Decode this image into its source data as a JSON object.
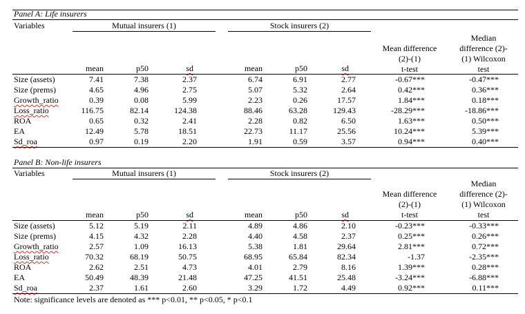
{
  "panel_a": {
    "title": "Panel A: Life insurers",
    "variables_label": "Variables",
    "group_mutual": "Mutual insurers (1)",
    "group_stock": "Stock insurers (2)",
    "col_mean": "mean",
    "col_p50": "p50",
    "col_sd": "sd",
    "mean_diff_header": [
      "Mean difference",
      "(2)-(1)",
      "t-test"
    ],
    "median_diff_header": [
      "Median",
      "difference (2)-",
      "(1) Wilcoxon",
      "test"
    ],
    "rows": [
      {
        "label": "Size (assets)",
        "m_mean": "7.41",
        "m_p50": "7.38",
        "m_sd": "2.37",
        "s_mean": "6.74",
        "s_p50": "6.91",
        "s_sd": "2.77",
        "mean_diff": "-0.67***",
        "median_diff": "-0.47***"
      },
      {
        "label": "Size (prems)",
        "m_mean": "4.65",
        "m_p50": "4.96",
        "m_sd": "2.75",
        "s_mean": "5.07",
        "s_p50": "5.32",
        "s_sd": "2.64",
        "mean_diff": "0.42***",
        "median_diff": "0.36***"
      },
      {
        "label": "Growth_ratio",
        "m_mean": "0.39",
        "m_p50": "0.08",
        "m_sd": "5.99",
        "s_mean": "2.23",
        "s_p50": "0.26",
        "s_sd": "17.57",
        "mean_diff": "1.84***",
        "median_diff": "0.18***"
      },
      {
        "label": "Loss_ratio",
        "m_mean": "116.75",
        "m_p50": "82.14",
        "m_sd": "124.38",
        "s_mean": "88.46",
        "s_p50": "63.28",
        "s_sd": "129.43",
        "mean_diff": "-28.29***",
        "median_diff": "-18.86***"
      },
      {
        "label": "ROA",
        "m_mean": "0.65",
        "m_p50": "0.32",
        "m_sd": "2.41",
        "s_mean": "2.28",
        "s_p50": "0.82",
        "s_sd": "6.50",
        "mean_diff": "1.63***",
        "median_diff": "0.50***"
      },
      {
        "label": "EA",
        "m_mean": "12.49",
        "m_p50": "5.78",
        "m_sd": "18.51",
        "s_mean": "22.73",
        "s_p50": "11.17",
        "s_sd": "25.56",
        "mean_diff": "10.24***",
        "median_diff": "5.39***"
      },
      {
        "label": "Sd_roa",
        "m_mean": "0.97",
        "m_p50": "0.19",
        "m_sd": "2.20",
        "s_mean": "1.91",
        "s_p50": "0.59",
        "s_sd": "3.57",
        "mean_diff": "0.94***",
        "median_diff": "0.40***"
      }
    ]
  },
  "panel_b": {
    "title": "Panel B: Non-life insurers",
    "variables_label": "Variables",
    "group_mutual": "Mutual insurers (1)",
    "group_stock": "Stock insurers (2)",
    "col_mean": "mean",
    "col_p50": "p50",
    "col_sd": "sd",
    "mean_diff_header": [
      "Mean difference",
      "(2)-(1)",
      "t-test"
    ],
    "median_diff_header": [
      "Median",
      "difference (2)-",
      "(1) Wilcoxon",
      "test"
    ],
    "rows": [
      {
        "label": "Size (assets)",
        "m_mean": "5.12",
        "m_p50": "5.19",
        "m_sd": "2.11",
        "s_mean": "4.89",
        "s_p50": "4.86",
        "s_sd": "2.10",
        "mean_diff": "-0.23***",
        "median_diff": "-0.33***"
      },
      {
        "label": "Size (prems)",
        "m_mean": "4.15",
        "m_p50": "4.32",
        "m_sd": "2.28",
        "s_mean": "4.40",
        "s_p50": "4.58",
        "s_sd": "2.37",
        "mean_diff": "0.25***",
        "median_diff": "0.26***"
      },
      {
        "label": "Growth_ratio",
        "m_mean": "2.57",
        "m_p50": "1.09",
        "m_sd": "16.13",
        "s_mean": "5.38",
        "s_p50": "1.81",
        "s_sd": "29.64",
        "mean_diff": "2.81***",
        "median_diff": "0.72***"
      },
      {
        "label": "Loss_ratio",
        "m_mean": "70.32",
        "m_p50": "68.19",
        "m_sd": "50.75",
        "s_mean": "68.95",
        "s_p50": "65.84",
        "s_sd": "82.34",
        "mean_diff": "-1.37",
        "median_diff": "-2.35***"
      },
      {
        "label": "ROA",
        "m_mean": "2.62",
        "m_p50": "2.51",
        "m_sd": "4.73",
        "s_mean": "4.01",
        "s_p50": "2.79",
        "s_sd": "8.16",
        "mean_diff": "1.39***",
        "median_diff": "0.28***"
      },
      {
        "label": "EA",
        "m_mean": "50.49",
        "m_p50": "48.39",
        "m_sd": "21.48",
        "s_mean": "47.25",
        "s_p50": "41.51",
        "s_sd": "25.48",
        "mean_diff": "-3.24***",
        "median_diff": "-6.88***"
      },
      {
        "label": "Sd_roa",
        "m_mean": "2.37",
        "m_p50": "1.61",
        "m_sd": "2.60",
        "s_mean": "3.29",
        "s_p50": "1.72",
        "s_sd": "4.49",
        "mean_diff": "0.92***",
        "median_diff": "0.11***"
      }
    ]
  },
  "note": "Note: significance levels are denoted as *** p<0.01, ** p<0.05, * p<0.1"
}
